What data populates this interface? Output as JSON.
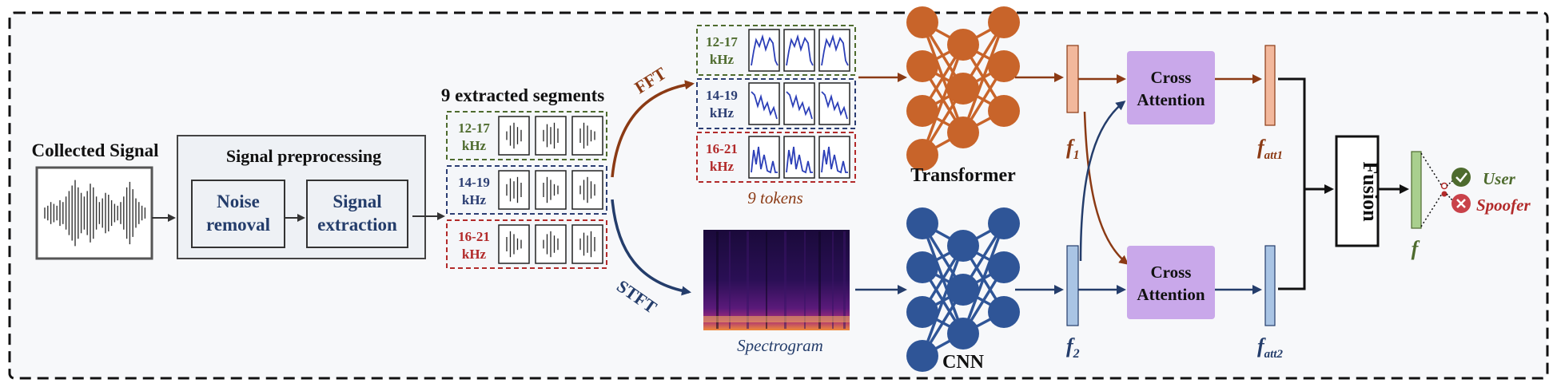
{
  "collected_signal": {
    "title": "Collected Signal"
  },
  "preprocessing": {
    "title": "Signal preprocessing",
    "noise_removal": [
      "Noise",
      "removal"
    ],
    "signal_extraction": [
      "Signal",
      "extraction"
    ]
  },
  "segments": {
    "title": "9 extracted segments",
    "bands": [
      {
        "line1": "12-17",
        "line2": "kHz",
        "color": "#4e6b2e"
      },
      {
        "line1": "14-19",
        "line2": "kHz",
        "color": "#2c3e73"
      },
      {
        "line1": "16-21",
        "line2": "kHz",
        "color": "#b22a2a"
      }
    ]
  },
  "labels": {
    "fft": "FFT",
    "stft": "STFT",
    "tokens": "9 tokens",
    "spectrogram": "Spectrogram",
    "transformer": "Transformer",
    "cnn": "CNN",
    "cross_attention_1": [
      "Cross",
      "Attention"
    ],
    "cross_attention_2": [
      "Cross",
      "Attention"
    ],
    "fusion": "Fusion",
    "f1": {
      "base": "f",
      "sub": "1"
    },
    "f2": {
      "base": "f",
      "sub": "2"
    },
    "fatt1": {
      "base": "f",
      "sub": "att1"
    },
    "fatt2": {
      "base": "f",
      "sub": "att2"
    },
    "f": "f",
    "user": "User",
    "spoofer": "Spoofer"
  },
  "colors": {
    "transformer_branch": "#8b3a14",
    "cnn_branch": "#243d6b",
    "transformer_node": "#c8642a",
    "cnn_node": "#2f5597",
    "attention_fill": "#c9a8ea",
    "f1_fill": "#f2b89c",
    "f2_fill": "#a9c4e4",
    "f_fill": "#a9cf8e",
    "user": "#4e6b2e",
    "spoofer": "#b22a2a"
  }
}
